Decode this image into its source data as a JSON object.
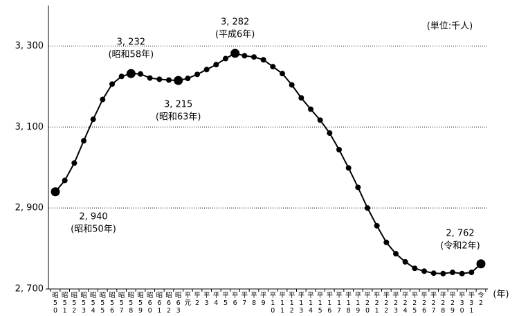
{
  "chart_data": {
    "type": "line",
    "unit": "(単位:千人)",
    "x_unit": "(年)",
    "categories": [
      "昭50",
      "昭51",
      "昭52",
      "昭53",
      "昭54",
      "昭55",
      "昭56",
      "昭57",
      "昭58",
      "昭59",
      "昭60",
      "昭61",
      "昭62",
      "昭63",
      "平元",
      "平2",
      "平3",
      "平4",
      "平5",
      "平6",
      "平7",
      "平8",
      "平9",
      "平10",
      "平11",
      "平12",
      "平13",
      "平14",
      "平15",
      "平16",
      "平17",
      "平18",
      "平19",
      "平20",
      "平21",
      "平22",
      "平23",
      "平24",
      "平25",
      "平26",
      "平27",
      "平28",
      "平29",
      "平30",
      "平31",
      "令2"
    ],
    "series": [
      {
        "color": "#000000",
        "values": [
          2940,
          2968,
          3011,
          3066,
          3119,
          3168,
          3206,
          3225,
          3232,
          3231,
          3221,
          3218,
          3216,
          3215,
          3220,
          3230,
          3242,
          3254,
          3269,
          3282,
          3276,
          3273,
          3266,
          3249,
          3232,
          3204,
          3172,
          3144,
          3117,
          3085,
          3044,
          2999,
          2951,
          2900,
          2856,
          2815,
          2787,
          2767,
          2751,
          2744,
          2739,
          2738,
          2741,
          2738,
          2741,
          2762
        ],
        "value_labels": [
          "2, 940",
          null,
          null,
          null,
          null,
          null,
          null,
          null,
          "3, 232",
          null,
          null,
          null,
          null,
          "3, 215",
          null,
          null,
          null,
          null,
          null,
          "3, 282",
          null,
          null,
          null,
          null,
          null,
          null,
          null,
          null,
          null,
          null,
          null,
          null,
          null,
          null,
          null,
          null,
          null,
          null,
          null,
          null,
          null,
          null,
          null,
          null,
          null,
          "2, 762"
        ],
        "annotations": [
          "(昭和50年)",
          null,
          null,
          null,
          null,
          null,
          null,
          null,
          "(昭和58年)",
          null,
          null,
          null,
          null,
          "(昭和63年)",
          null,
          null,
          null,
          null,
          null,
          "(平成6年)",
          null,
          null,
          null,
          null,
          null,
          null,
          null,
          null,
          null,
          null,
          null,
          null,
          null,
          null,
          null,
          null,
          null,
          null,
          null,
          null,
          null,
          null,
          null,
          null,
          null,
          "(令和2年)"
        ]
      }
    ],
    "ylim": [
      2700,
      3400
    ],
    "yticks": [
      {
        "value": 2700,
        "label": "2, 700"
      },
      {
        "value": 2900,
        "label": "2, 900"
      },
      {
        "value": 3100,
        "label": "3, 100"
      },
      {
        "value": 3300,
        "label": "3, 300"
      }
    ],
    "grid": true
  }
}
